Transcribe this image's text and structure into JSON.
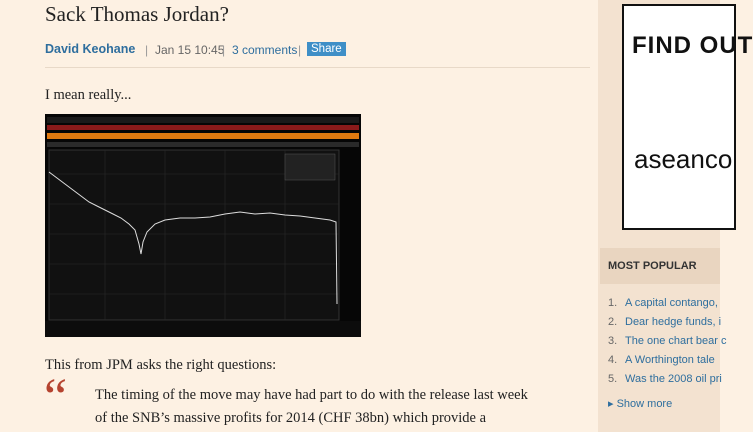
{
  "article": {
    "title": "Sack Thomas Jordan?",
    "author": "David Keohane",
    "date": "Jan 15 10:45",
    "comments": "3 comments",
    "share": "Share",
    "intro": "I mean really...",
    "lead": "This from JPM asks the right questions:",
    "quote_mark": "“",
    "quote_lines": [
      "The timing of the move may have had part to do with the release last week",
      "of the SNB’s massive profits for 2014 (CHF 38bn) which provide a"
    ]
  },
  "sidebar": {
    "ad_lines": [
      "FIND OUT",
      "aseanco"
    ],
    "most_popular": {
      "title": "MOST POPULAR",
      "items": [
        {
          "number": "1.",
          "text": "A capital contango,"
        },
        {
          "number": "2.",
          "text": "Dear hedge funds, i"
        },
        {
          "number": "3.",
          "text": "The one chart bear c"
        },
        {
          "number": "4.",
          "text": "A Worthington tale"
        },
        {
          "number": "5.",
          "text": "Was the 2008 oil pri"
        }
      ],
      "show_more": "▸ Show more"
    }
  }
}
